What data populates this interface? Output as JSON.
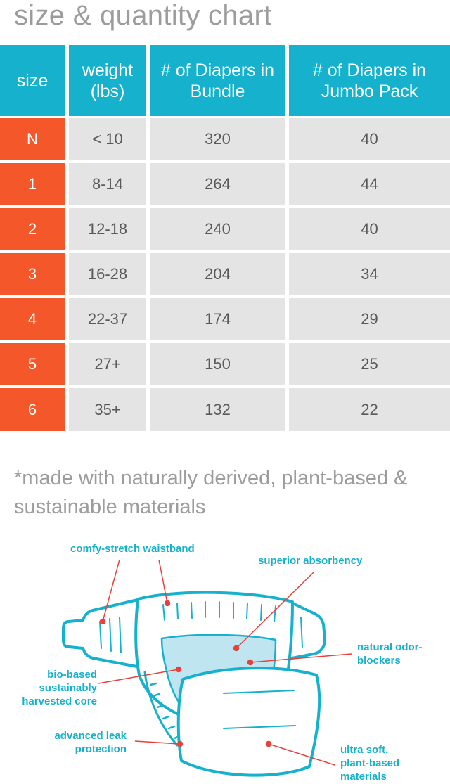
{
  "title": "size & quantity chart",
  "table": {
    "headers": [
      "size",
      "weight (lbs)",
      "# of Diapers in Bundle",
      "# of Diapers in Jumbo Pack"
    ],
    "rows": [
      {
        "size": "N",
        "weight": "< 10",
        "bundle": "320",
        "jumbo": "40"
      },
      {
        "size": "1",
        "weight": "8-14",
        "bundle": "264",
        "jumbo": "44"
      },
      {
        "size": "2",
        "weight": "12-18",
        "bundle": "240",
        "jumbo": "40"
      },
      {
        "size": "3",
        "weight": "16-28",
        "bundle": "204",
        "jumbo": "34"
      },
      {
        "size": "4",
        "weight": "22-37",
        "bundle": "174",
        "jumbo": "29"
      },
      {
        "size": "5",
        "weight": "27+",
        "bundle": "150",
        "jumbo": "25"
      },
      {
        "size": "6",
        "weight": "35+",
        "bundle": "132",
        "jumbo": "22"
      }
    ]
  },
  "note": "*made with naturally derived, plant-based & sustainable materials",
  "diagram": {
    "callouts": {
      "waistband": "comfy-stretch waistband",
      "absorbency": "superior absorbency",
      "odor": "natural odor-blockers",
      "core": "bio-based sustainably harvested core",
      "leak": "advanced leak protection",
      "soft": "ultra soft, plant-based materials"
    }
  },
  "colors": {
    "teal": "#16b1cc",
    "orange": "#f4582a",
    "cell_gray": "#e4e4e4",
    "text_gray": "#9c9c9c",
    "leader_red": "#e8413c"
  }
}
